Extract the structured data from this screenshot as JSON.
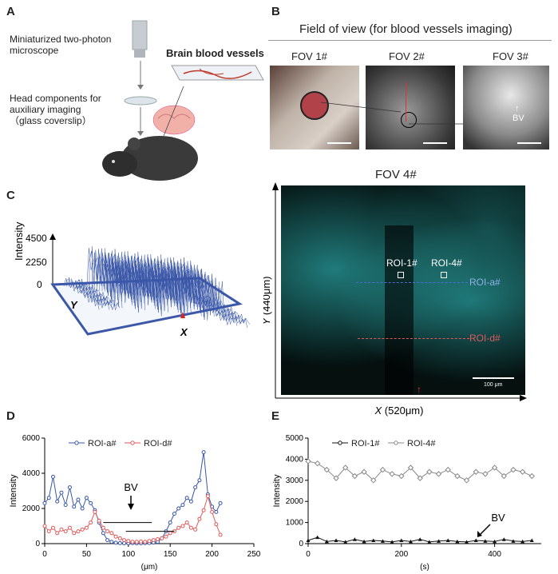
{
  "panels": {
    "A": {
      "letter": "A",
      "microscope_label": "Miniaturized two-photon microscope",
      "head_label_1": "Head components for",
      "head_label_2": "auxiliary imaging",
      "head_label_3": "（glass coverslip）",
      "vessels_label": "Brain blood vessels"
    },
    "B": {
      "letter": "B",
      "title": "Field of view (for blood vessels imaging)",
      "fov_labels": [
        "FOV 1#",
        "FOV 2#",
        "FOV 3#"
      ],
      "bv_label": "BV"
    },
    "C": {
      "letter": "C",
      "ylabel": "Intensity",
      "ticks": [
        "4500",
        "2250",
        "0"
      ],
      "axis_y": "Y",
      "axis_x": "X"
    },
    "FOV4": {
      "title": "FOV 4#",
      "roi_labels": [
        "ROI-1#",
        "ROI-4#"
      ],
      "line_labels": [
        "ROI-a#",
        "ROI-d#"
      ],
      "scalebar_label": "100 μm",
      "ylabel_italic": "Y",
      "ylabel_unit": " (440μm)",
      "xlabel_italic": "X",
      "xlabel_unit": " (520μm)"
    },
    "D": {
      "letter": "D"
    },
    "E": {
      "letter": "E"
    }
  },
  "colors": {
    "blue_series": "#3a57a8",
    "red_series": "#e05a5a",
    "cyan_image": "#2fb5b5",
    "black_series": "#111111",
    "gray_series": "#888888"
  },
  "chart_data": [
    {
      "id": "D",
      "type": "line",
      "xlabel": "(μm)",
      "ylabel": "Intensity",
      "xlim": [
        0,
        250
      ],
      "ylim": [
        0,
        6000
      ],
      "xticks": [
        0,
        50,
        100,
        150,
        200,
        250
      ],
      "yticks": [
        0,
        2000,
        4000,
        6000
      ],
      "legend": "top-left",
      "annotation": "BV",
      "series": [
        {
          "name": "ROI-a#",
          "x": [
            0,
            5,
            10,
            15,
            20,
            25,
            30,
            35,
            40,
            45,
            50,
            55,
            60,
            65,
            70,
            75,
            80,
            85,
            90,
            95,
            100,
            105,
            110,
            115,
            120,
            125,
            130,
            135,
            140,
            145,
            150,
            155,
            160,
            165,
            170,
            175,
            180,
            185,
            190,
            195,
            200,
            205,
            210
          ],
          "values": [
            2300,
            2600,
            3800,
            2400,
            2900,
            2200,
            3200,
            2100,
            2500,
            2000,
            2600,
            2300,
            1900,
            1200,
            600,
            200,
            100,
            50,
            30,
            20,
            20,
            30,
            20,
            20,
            30,
            40,
            60,
            100,
            300,
            700,
            1200,
            1700,
            2000,
            2200,
            2600,
            2400,
            3200,
            3600,
            5200,
            2800,
            2100,
            1800,
            2300
          ]
        },
        {
          "name": "ROI-d#",
          "x": [
            0,
            5,
            10,
            15,
            20,
            25,
            30,
            35,
            40,
            45,
            50,
            55,
            60,
            65,
            70,
            75,
            80,
            85,
            90,
            95,
            100,
            105,
            110,
            115,
            120,
            125,
            130,
            135,
            140,
            145,
            150,
            155,
            160,
            165,
            170,
            175,
            180,
            185,
            190,
            195,
            200,
            205,
            210
          ],
          "values": [
            1000,
            700,
            900,
            600,
            800,
            700,
            900,
            600,
            700,
            800,
            900,
            1200,
            1800,
            1300,
            900,
            700,
            600,
            400,
            300,
            200,
            150,
            100,
            100,
            120,
            100,
            150,
            200,
            250,
            300,
            400,
            600,
            700,
            900,
            1000,
            1200,
            900,
            800,
            1400,
            1900,
            2700,
            1800,
            1100,
            500
          ]
        }
      ]
    },
    {
      "id": "E",
      "type": "line",
      "xlabel": "(s)",
      "ylabel": "Intensity",
      "xlim": [
        0,
        500
      ],
      "ylim": [
        0,
        5000
      ],
      "xticks": [
        0,
        200,
        400
      ],
      "yticks": [
        0,
        1000,
        2000,
        3000,
        4000,
        5000
      ],
      "legend": "top-left",
      "annotation": "BV",
      "series": [
        {
          "name": "ROI-1#",
          "x": [
            0,
            20,
            40,
            60,
            80,
            100,
            120,
            140,
            160,
            180,
            200,
            220,
            240,
            260,
            280,
            300,
            320,
            340,
            360,
            380,
            400,
            420,
            440,
            460,
            480
          ],
          "values": [
            150,
            300,
            100,
            150,
            80,
            200,
            100,
            150,
            120,
            80,
            150,
            100,
            200,
            80,
            120,
            150,
            100,
            80,
            150,
            120,
            100,
            200,
            120,
            100,
            150
          ]
        },
        {
          "name": "ROI-4#",
          "x": [
            0,
            20,
            40,
            60,
            80,
            100,
            120,
            140,
            160,
            180,
            200,
            220,
            240,
            260,
            280,
            300,
            320,
            340,
            360,
            380,
            400,
            420,
            440,
            460,
            480
          ],
          "values": [
            3900,
            3800,
            3500,
            3100,
            3600,
            3200,
            3400,
            3000,
            3500,
            3300,
            3200,
            3600,
            3100,
            3400,
            3300,
            3500,
            3200,
            3000,
            3400,
            3300,
            3600,
            3200,
            3500,
            3400,
            3200
          ]
        }
      ]
    }
  ]
}
